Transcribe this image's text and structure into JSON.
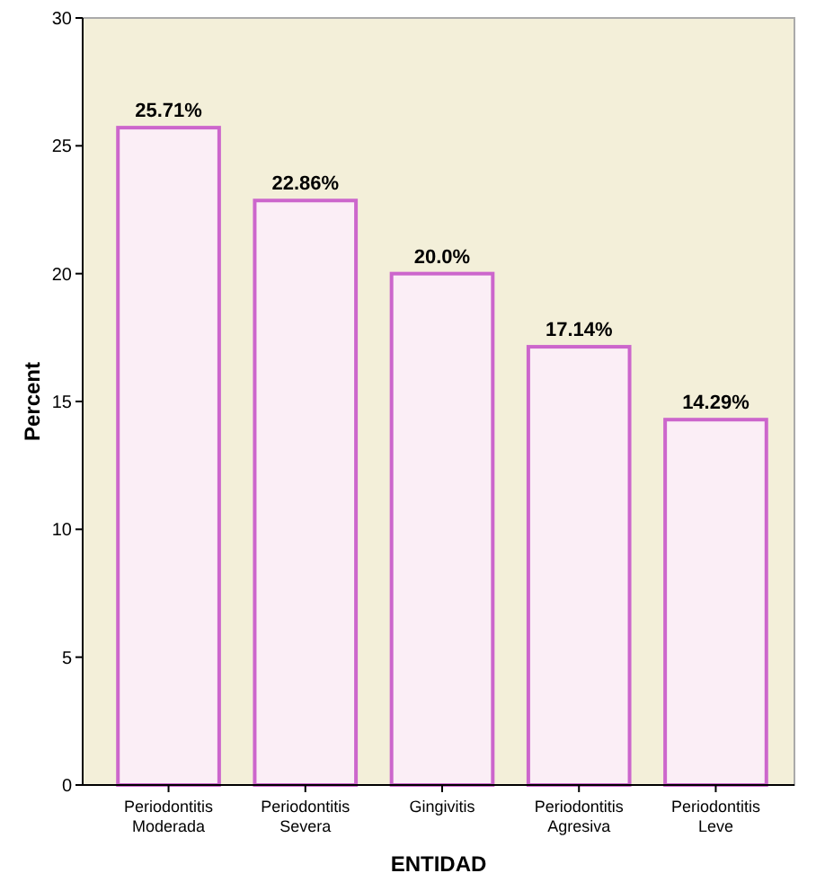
{
  "chart_data": {
    "type": "bar",
    "xlabel": "ENTIDAD",
    "ylabel": "Percent",
    "categories": [
      "Periodontitis Moderada",
      "Periodontitis Severa",
      "Gingivitis",
      "Periodontitis Agresiva",
      "Periodontitis Leve"
    ],
    "values": [
      25.71,
      22.86,
      20.0,
      17.14,
      14.29
    ],
    "value_labels": [
      "25.71%",
      "22.86%",
      "20.0%",
      "17.14%",
      "14.29%"
    ],
    "color": "#fbeef6",
    "ylim": [
      0,
      30
    ],
    "yticks": [
      0,
      5,
      10,
      15,
      20,
      25,
      30
    ],
    "grid": false
  }
}
